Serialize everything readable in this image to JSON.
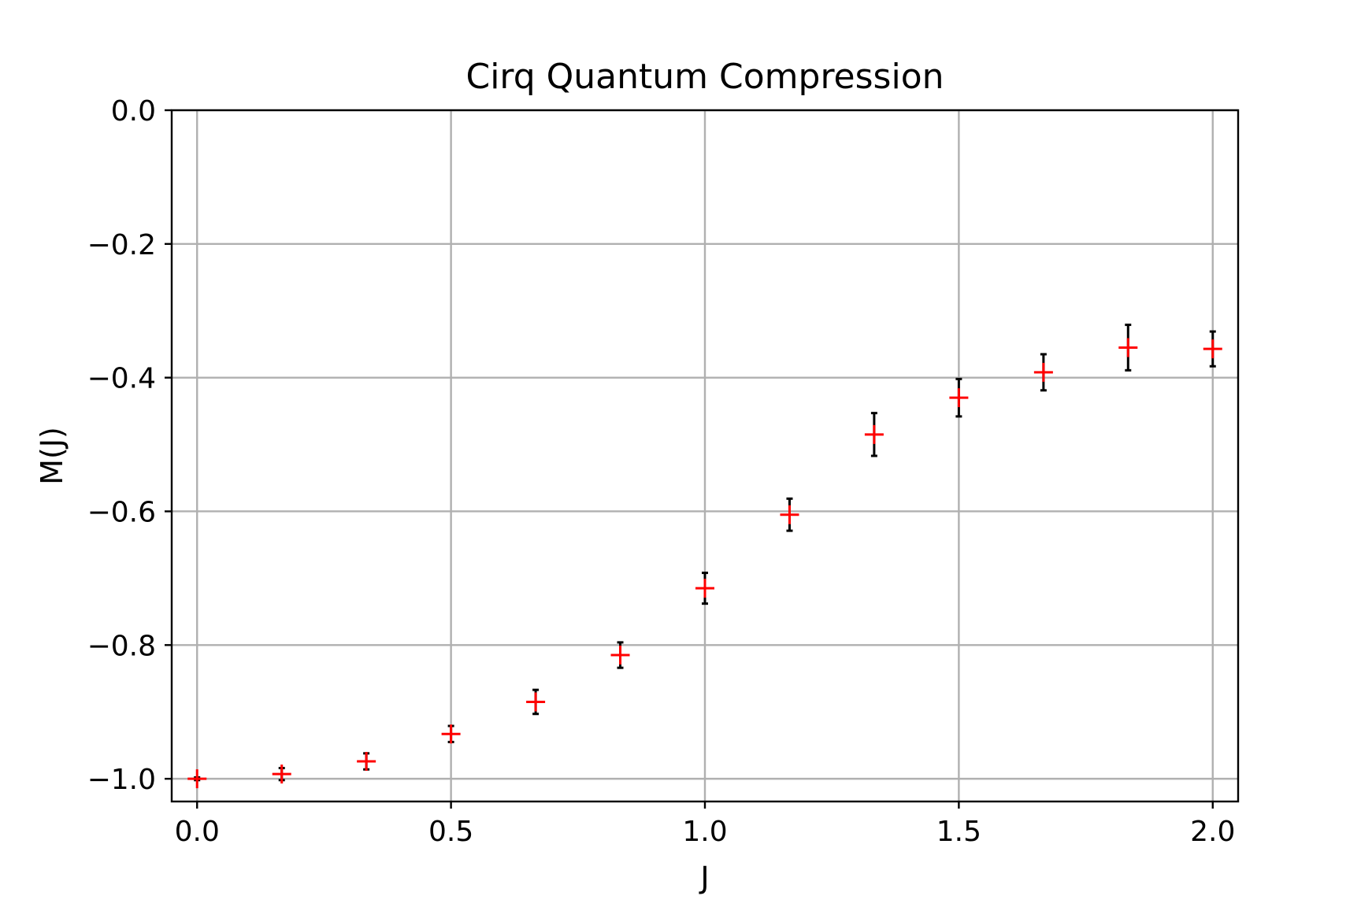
{
  "chart_data": {
    "type": "scatter",
    "title": "Cirq Quantum Compression",
    "xlabel": "J",
    "ylabel": "M(J)",
    "xlim": [
      -0.05,
      2.05
    ],
    "ylim": [
      -1.034,
      0.0
    ],
    "xticks": [
      0.0,
      0.5,
      1.0,
      1.5,
      2.0
    ],
    "xtick_labels": [
      "0.0",
      "0.5",
      "1.0",
      "1.5",
      "2.0"
    ],
    "yticks": [
      0.0,
      -0.2,
      -0.4,
      -0.6,
      -0.8,
      -1.0
    ],
    "ytick_labels": [
      "0.0",
      "−0.2",
      "−0.4",
      "−0.6",
      "−0.8",
      "−1.0"
    ],
    "grid": true,
    "marker": "+",
    "marker_color": "#ff0000",
    "errorbar_color": "#000000",
    "series": [
      {
        "x": [
          0.0,
          0.1667,
          0.3333,
          0.5,
          0.6667,
          0.8333,
          1.0,
          1.1667,
          1.3333,
          1.5,
          1.6667,
          1.8333,
          2.0
        ],
        "y": [
          -1.0,
          -0.993,
          -0.974,
          -0.933,
          -0.885,
          -0.815,
          -0.715,
          -0.605,
          -0.485,
          -0.43,
          -0.392,
          -0.355,
          -0.357
        ],
        "err": [
          0.002,
          0.009,
          0.012,
          0.012,
          0.018,
          0.019,
          0.023,
          0.024,
          0.032,
          0.028,
          0.027,
          0.034,
          0.026
        ]
      }
    ]
  }
}
